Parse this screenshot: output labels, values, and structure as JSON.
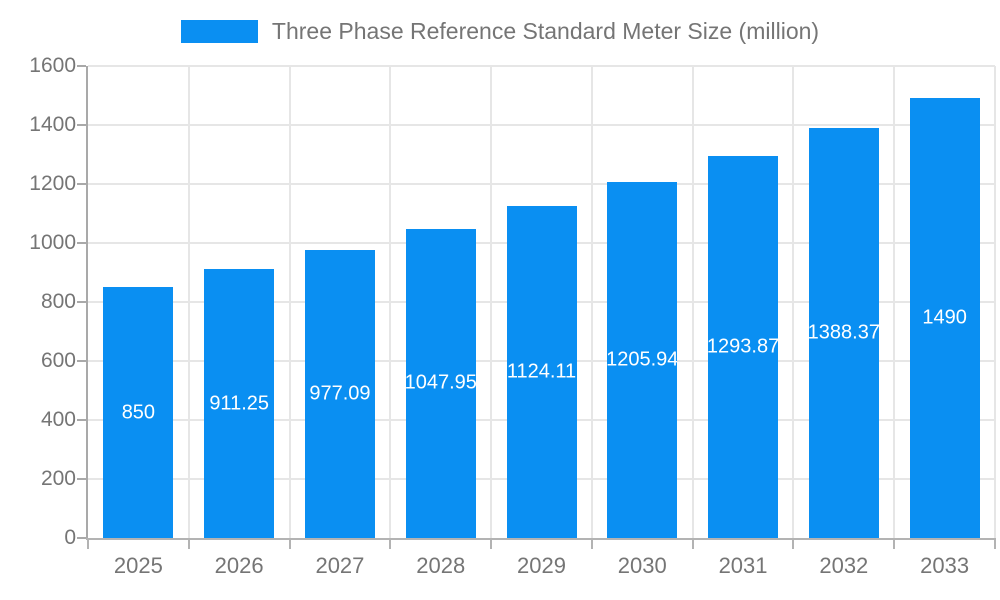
{
  "legend": {
    "label": "Three Phase Reference Standard Meter Size (million)"
  },
  "chart_data": {
    "type": "bar",
    "title": "Three Phase Reference Standard Meter Size (million)",
    "categories": [
      "2025",
      "2026",
      "2027",
      "2028",
      "2029",
      "2030",
      "2031",
      "2032",
      "2033"
    ],
    "values": [
      850,
      911.25,
      977.09,
      1047.95,
      1124.11,
      1205.94,
      1293.87,
      1388.37,
      1490
    ],
    "value_labels": [
      "850",
      "911.25",
      "977.09",
      "1047.95",
      "1124.11",
      "1205.94",
      "1293.87",
      "1388.37",
      "1490"
    ],
    "xlabel": "",
    "ylabel": "",
    "ylim": [
      0,
      1600
    ],
    "ytick_step": 200,
    "ytick_labels": [
      "0",
      "200",
      "400",
      "600",
      "800",
      "1000",
      "1200",
      "1400",
      "1600"
    ],
    "grid": true,
    "legend_position": "top-center",
    "value_label_position": "inside-center",
    "colors": {
      "bar": "#0a8ff2",
      "value_label": "#ffffff",
      "axis_text": "#757575",
      "gridline": "#e6e6e6",
      "axis_line": "#b3b3b3"
    }
  }
}
